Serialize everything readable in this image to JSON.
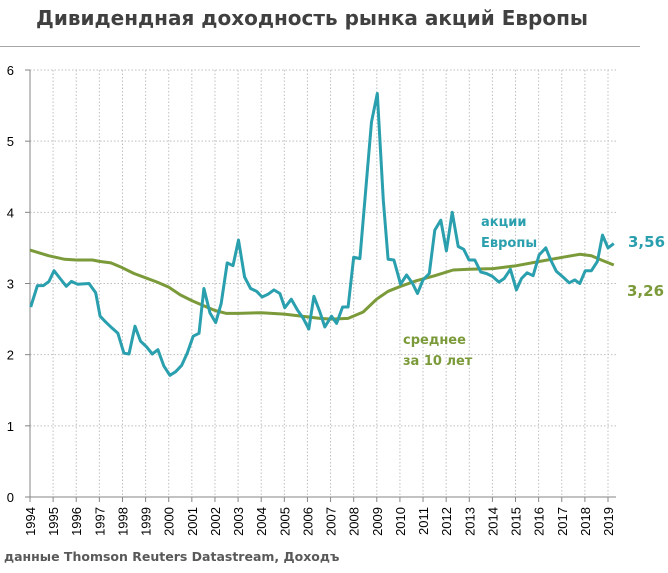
{
  "title": "Дивидендная доходность рынка акций Европы",
  "source": "данные Thomson Reuters Datastream, Доходъ",
  "chart_data": {
    "type": "line",
    "title": "Дивидендная доходность рынка акций Европы",
    "xlim": [
      1994,
      2019
    ],
    "ylim": [
      0,
      6
    ],
    "yticks": [
      "0",
      "1",
      "2",
      "3",
      "4",
      "5",
      "6"
    ],
    "xticks": [
      "1994",
      "1995",
      "1996",
      "1997",
      "1998",
      "1999",
      "2000",
      "2001",
      "2002",
      "2003",
      "2004",
      "2005",
      "2006",
      "2007",
      "2008",
      "2009",
      "2010",
      "2011",
      "2012",
      "2013",
      "2014",
      "2015",
      "2016",
      "2017",
      "2018",
      "2019"
    ],
    "grid": true,
    "series": [
      {
        "name": "акции Европы",
        "label_lines": [
          "акции",
          "Европы"
        ],
        "end_label": "3,56",
        "color": "#2a9fae",
        "points": [
          [
            1994.03,
            2.67
          ],
          [
            1994.32,
            2.97
          ],
          [
            1994.58,
            2.97
          ],
          [
            1994.82,
            3.03
          ],
          [
            1995.04,
            3.18
          ],
          [
            1995.3,
            3.07
          ],
          [
            1995.57,
            2.96
          ],
          [
            1995.79,
            3.03
          ],
          [
            1996.05,
            2.99
          ],
          [
            1996.55,
            3.0
          ],
          [
            1996.84,
            2.87
          ],
          [
            1997.03,
            2.54
          ],
          [
            1997.27,
            2.46
          ],
          [
            1997.56,
            2.37
          ],
          [
            1997.8,
            2.3
          ],
          [
            1998.06,
            2.02
          ],
          [
            1998.28,
            2.01
          ],
          [
            1998.54,
            2.4
          ],
          [
            1998.78,
            2.19
          ],
          [
            1999.04,
            2.11
          ],
          [
            1999.29,
            2.01
          ],
          [
            1999.53,
            2.07
          ],
          [
            1999.79,
            1.84
          ],
          [
            2000.05,
            1.71
          ],
          [
            2000.3,
            1.76
          ],
          [
            2000.56,
            1.85
          ],
          [
            2000.8,
            2.02
          ],
          [
            2001.06,
            2.26
          ],
          [
            2001.31,
            2.3
          ],
          [
            2001.52,
            2.93
          ],
          [
            2001.78,
            2.59
          ],
          [
            2002.03,
            2.45
          ],
          [
            2002.27,
            2.72
          ],
          [
            2002.53,
            3.29
          ],
          [
            2002.78,
            3.25
          ],
          [
            2003.02,
            3.61
          ],
          [
            2003.28,
            3.09
          ],
          [
            2003.54,
            2.93
          ],
          [
            2003.8,
            2.89
          ],
          [
            2004.04,
            2.81
          ],
          [
            2004.3,
            2.85
          ],
          [
            2004.55,
            2.91
          ],
          [
            2004.81,
            2.86
          ],
          [
            2005.02,
            2.66
          ],
          [
            2005.3,
            2.78
          ],
          [
            2005.56,
            2.63
          ],
          [
            2005.82,
            2.51
          ],
          [
            2006.06,
            2.36
          ],
          [
            2006.28,
            2.82
          ],
          [
            2006.54,
            2.6
          ],
          [
            2006.75,
            2.39
          ],
          [
            2007.04,
            2.54
          ],
          [
            2007.26,
            2.44
          ],
          [
            2007.52,
            2.67
          ],
          [
            2007.76,
            2.67
          ],
          [
            2008.0,
            3.37
          ],
          [
            2008.27,
            3.35
          ],
          [
            2008.77,
            5.27
          ],
          [
            2009.02,
            5.67
          ],
          [
            2009.28,
            4.17
          ],
          [
            2009.49,
            3.34
          ],
          [
            2009.74,
            3.33
          ],
          [
            2010.03,
            2.99
          ],
          [
            2010.29,
            3.12
          ],
          [
            2010.55,
            3.0
          ],
          [
            2010.76,
            2.86
          ],
          [
            2011.0,
            3.05
          ],
          [
            2011.27,
            3.14
          ],
          [
            2011.51,
            3.75
          ],
          [
            2011.77,
            3.89
          ],
          [
            2012.01,
            3.46
          ],
          [
            2012.26,
            4.0
          ],
          [
            2012.52,
            3.52
          ],
          [
            2012.76,
            3.48
          ],
          [
            2012.99,
            3.33
          ],
          [
            2013.24,
            3.33
          ],
          [
            2013.5,
            3.16
          ],
          [
            2013.74,
            3.14
          ],
          [
            2014.0,
            3.1
          ],
          [
            2014.28,
            3.02
          ],
          [
            2014.51,
            3.07
          ],
          [
            2014.78,
            3.2
          ],
          [
            2015.04,
            2.91
          ],
          [
            2015.26,
            3.07
          ],
          [
            2015.5,
            3.15
          ],
          [
            2015.76,
            3.11
          ],
          [
            2016.02,
            3.4
          ],
          [
            2016.31,
            3.5
          ],
          [
            2016.52,
            3.33
          ],
          [
            2016.77,
            3.17
          ],
          [
            2017.06,
            3.09
          ],
          [
            2017.32,
            3.01
          ],
          [
            2017.56,
            3.05
          ],
          [
            2017.78,
            3.0
          ],
          [
            2018.02,
            3.18
          ],
          [
            2018.28,
            3.18
          ],
          [
            2018.54,
            3.31
          ],
          [
            2018.76,
            3.68
          ],
          [
            2019.0,
            3.5
          ],
          [
            2019.25,
            3.56
          ]
        ]
      },
      {
        "name": "среднее за 10 лет",
        "label_lines": [
          "среднее",
          "за 10 лет"
        ],
        "end_label": "3,26",
        "color": "#7b9a3a",
        "points": [
          [
            1994.0,
            3.47
          ],
          [
            1994.8,
            3.39
          ],
          [
            1995.5,
            3.34
          ],
          [
            1996.0,
            3.33
          ],
          [
            1996.7,
            3.33
          ],
          [
            1997.0,
            3.31
          ],
          [
            1997.5,
            3.29
          ],
          [
            1998.0,
            3.22
          ],
          [
            1998.5,
            3.14
          ],
          [
            1999.0,
            3.08
          ],
          [
            1999.5,
            3.02
          ],
          [
            2000.0,
            2.95
          ],
          [
            2000.5,
            2.84
          ],
          [
            2001.0,
            2.76
          ],
          [
            2001.5,
            2.69
          ],
          [
            2002.0,
            2.62
          ],
          [
            2002.5,
            2.58
          ],
          [
            2003.0,
            2.58
          ],
          [
            2004.0,
            2.59
          ],
          [
            2005.0,
            2.57
          ],
          [
            2006.0,
            2.53
          ],
          [
            2006.54,
            2.51
          ],
          [
            2007.04,
            2.5
          ],
          [
            2007.76,
            2.51
          ],
          [
            2008.41,
            2.6
          ],
          [
            2008.99,
            2.78
          ],
          [
            2009.49,
            2.89
          ],
          [
            2010.03,
            2.96
          ],
          [
            2010.72,
            3.04
          ],
          [
            2011.51,
            3.11
          ],
          [
            2012.3,
            3.19
          ],
          [
            2012.99,
            3.2
          ],
          [
            2014.03,
            3.21
          ],
          [
            2015.04,
            3.25
          ],
          [
            2016.05,
            3.31
          ],
          [
            2017.06,
            3.37
          ],
          [
            2017.78,
            3.41
          ],
          [
            2018.28,
            3.39
          ],
          [
            2018.71,
            3.33
          ],
          [
            2019.25,
            3.26
          ]
        ]
      }
    ]
  }
}
